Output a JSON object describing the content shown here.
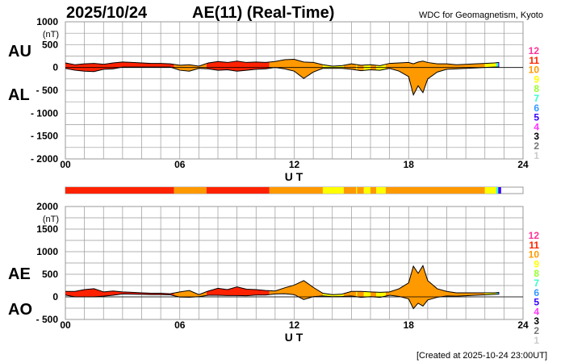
{
  "header": {
    "date": "2025/10/24",
    "title": "AE(11) (Real-Time)",
    "source": "WDC for Geomagnetism, Kyoto",
    "created": "[Created at 2025-10-24 23:00UT]"
  },
  "level_colors": {
    "12": "#ff3399",
    "11": "#ff2200",
    "10": "#ff9900",
    "9": "#ffff00",
    "8": "#99ff33",
    "7": "#33ffcc",
    "6": "#3399ff",
    "5": "#3300ff",
    "4": "#ff33ff",
    "3": "#000000",
    "2": "#777777",
    "1": "#cccccc"
  },
  "legend_levels": [
    "12",
    "11",
    "10",
    "9",
    "8",
    "7",
    "6",
    "5",
    "4",
    "3",
    "2",
    "1"
  ],
  "chart_data": [
    {
      "type": "area",
      "panel": "AU/AL",
      "labels": [
        "AU",
        "AL"
      ],
      "unit": "(nT)",
      "xlabel": "U T",
      "xlim": [
        0,
        24
      ],
      "ylim": [
        -2000,
        1000
      ],
      "xticks": [
        "00",
        "06",
        "12",
        "18",
        "24"
      ],
      "yticks": [
        1000,
        500,
        0,
        -500,
        -1000,
        -1500,
        -2000
      ],
      "ytick_labels": [
        "1000",
        "500",
        "0",
        "- 500",
        "- 1000",
        "- 1500",
        "- 2000"
      ],
      "grid": true,
      "x": [
        0,
        0.5,
        1,
        1.5,
        2,
        2.5,
        3,
        3.5,
        4,
        4.5,
        5,
        5.5,
        6,
        6.5,
        7,
        7.5,
        8,
        8.5,
        9,
        9.5,
        10,
        10.5,
        11,
        11.5,
        12,
        12.5,
        13,
        13.5,
        14,
        14.5,
        15,
        15.5,
        16,
        16.5,
        17,
        17.5,
        18,
        18.25,
        18.5,
        18.75,
        19,
        19.5,
        20,
        20.5,
        21,
        21.5,
        22,
        22.5,
        22.75
      ],
      "series": [
        {
          "name": "AU",
          "values": [
            100,
            60,
            80,
            90,
            70,
            100,
            120,
            110,
            100,
            90,
            90,
            80,
            50,
            60,
            30,
            100,
            130,
            110,
            140,
            110,
            120,
            110,
            130,
            170,
            180,
            120,
            110,
            60,
            30,
            40,
            80,
            50,
            60,
            40,
            90,
            100,
            110,
            80,
            120,
            140,
            110,
            80,
            80,
            60,
            70,
            80,
            90,
            100,
            110
          ]
        },
        {
          "name": "AL",
          "values": [
            -20,
            -60,
            -80,
            -90,
            -40,
            -30,
            10,
            10,
            10,
            10,
            10,
            10,
            -60,
            -80,
            -20,
            -30,
            -60,
            -50,
            -80,
            -60,
            -40,
            -30,
            0,
            -30,
            -80,
            -240,
            -100,
            -20,
            -20,
            -20,
            -40,
            -70,
            -50,
            -60,
            -20,
            -80,
            -200,
            -600,
            -400,
            -550,
            -250,
            -100,
            -40,
            -30,
            -20,
            -10,
            0,
            10,
            10
          ]
        }
      ]
    },
    {
      "type": "area",
      "panel": "AE/AO",
      "labels": [
        "AE",
        "AO"
      ],
      "unit": "(nT)",
      "xlabel": "U T",
      "xlim": [
        0,
        24
      ],
      "ylim": [
        -500,
        2000
      ],
      "xticks": [
        "00",
        "06",
        "12",
        "18",
        "24"
      ],
      "yticks": [
        2000,
        1500,
        1000,
        500,
        0,
        -500
      ],
      "ytick_labels": [
        "2000",
        "1500",
        "1000",
        "500",
        "0",
        "- 500"
      ],
      "grid": true,
      "x": [
        0,
        0.5,
        1,
        1.5,
        2,
        2.5,
        3,
        3.5,
        4,
        4.5,
        5,
        5.5,
        6,
        6.5,
        7,
        7.5,
        8,
        8.5,
        9,
        9.5,
        10,
        10.5,
        11,
        11.5,
        12,
        12.5,
        13,
        13.5,
        14,
        14.5,
        15,
        15.5,
        16,
        16.5,
        17,
        17.5,
        18,
        18.25,
        18.5,
        18.75,
        19,
        19.5,
        20,
        20.5,
        21,
        21.5,
        22,
        22.5,
        22.75
      ],
      "series": [
        {
          "name": "AE",
          "values": [
            120,
            120,
            160,
            180,
            110,
            130,
            110,
            100,
            90,
            80,
            80,
            70,
            110,
            140,
            50,
            130,
            190,
            160,
            220,
            170,
            160,
            140,
            130,
            200,
            260,
            360,
            210,
            80,
            50,
            60,
            120,
            120,
            110,
            100,
            110,
            180,
            310,
            680,
            520,
            690,
            360,
            180,
            120,
            90,
            90,
            90,
            90,
            90,
            100
          ]
        },
        {
          "name": "AO",
          "values": [
            40,
            0,
            0,
            0,
            15,
            35,
            65,
            60,
            55,
            50,
            50,
            45,
            -5,
            -10,
            5,
            35,
            35,
            30,
            30,
            25,
            40,
            40,
            65,
            70,
            50,
            -60,
            5,
            20,
            5,
            10,
            20,
            -10,
            5,
            -10,
            35,
            10,
            -45,
            -260,
            -140,
            -205,
            -70,
            -10,
            20,
            15,
            25,
            35,
            45,
            55,
            60
          ]
        }
      ]
    }
  ],
  "activity_bar": [
    {
      "from": 0,
      "to": 5.7,
      "level": "11"
    },
    {
      "from": 5.7,
      "to": 7.4,
      "level": "10"
    },
    {
      "from": 7.4,
      "to": 10.7,
      "level": "11"
    },
    {
      "from": 10.7,
      "to": 13.5,
      "level": "10"
    },
    {
      "from": 13.5,
      "to": 14.6,
      "level": "9"
    },
    {
      "from": 14.6,
      "to": 15.25,
      "level": "10"
    },
    {
      "from": 15.25,
      "to": 15.3,
      "level": "9"
    },
    {
      "from": 15.3,
      "to": 15.65,
      "level": "10"
    },
    {
      "from": 15.65,
      "to": 16.0,
      "level": "9"
    },
    {
      "from": 16.0,
      "to": 16.3,
      "level": "10"
    },
    {
      "from": 16.3,
      "to": 16.8,
      "level": "9"
    },
    {
      "from": 16.8,
      "to": 22.0,
      "level": "10"
    },
    {
      "from": 22.0,
      "to": 22.6,
      "level": "9"
    },
    {
      "from": 22.6,
      "to": 22.7,
      "level": "7"
    },
    {
      "from": 22.7,
      "to": 22.85,
      "level": "5"
    }
  ]
}
